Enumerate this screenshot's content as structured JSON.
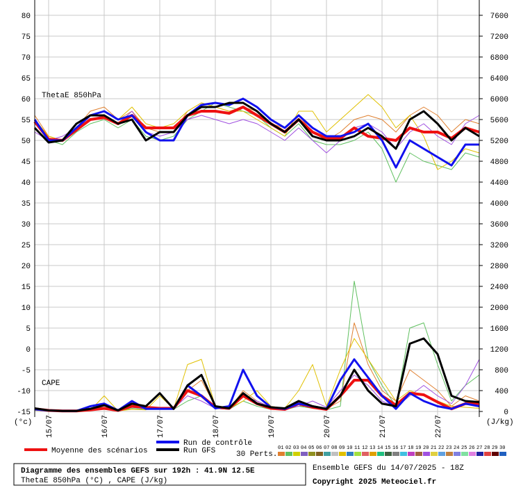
{
  "chart_data": {
    "type": "line",
    "title": "Diagramme des ensembles GEFS sur 192h : 41.9N 12.5E",
    "subtitle": "ThetaE 850hPa (°C) , CAPE (J/kg)",
    "run_info": "Ensemble GEFS du 14/07/2025 - 18Z",
    "copyright": "Copyright 2025 Meteociel.fr",
    "annotations": [
      "ThetaE 850hPa",
      "CAPE"
    ],
    "y_label": "(°c)",
    "y2_label": "(J/kg)",
    "perts_label": "30 Perts.",
    "grid": true,
    "categories": [
      null,
      "15/07",
      null,
      null,
      null,
      "16/07",
      null,
      null,
      null,
      "17/07",
      null,
      null,
      null,
      "18/07",
      null,
      null,
      null,
      "19/07",
      null,
      null,
      null,
      "20/07",
      null,
      null,
      null,
      "21/07",
      null,
      null,
      null,
      "22/07",
      null,
      null,
      null
    ],
    "ylim": [
      -15,
      80
    ],
    "yticks": [
      -15,
      -10,
      -5,
      0,
      5,
      10,
      15,
      20,
      25,
      30,
      35,
      40,
      45,
      50,
      55,
      60,
      65,
      70,
      75,
      80
    ],
    "y2lim": [
      0,
      7600
    ],
    "y2ticks": [
      0,
      400,
      800,
      1200,
      1600,
      2000,
      2400,
      2800,
      3200,
      3600,
      4000,
      4400,
      4800,
      5200,
      5600,
      6000,
      6400,
      6800,
      7200,
      7600
    ],
    "series": [
      {
        "name": "Moyenne des scénarios",
        "color": "#ee1111",
        "width": 4,
        "values": [
          54.5,
          50.3,
          50,
          52.5,
          55,
          55.5,
          54,
          56,
          53,
          53,
          53,
          56,
          57,
          57,
          56.5,
          58,
          56,
          54,
          52,
          55,
          52,
          50.5,
          50.5,
          53,
          51,
          50.5,
          50,
          53,
          52,
          52,
          50.5,
          53,
          52
        ]
      },
      {
        "name": "Run de contrôle",
        "color": "#1111ee",
        "width": 3,
        "values": [
          55,
          50,
          50,
          53,
          56,
          57,
          55,
          56,
          52,
          50,
          50,
          56,
          58.5,
          59,
          58.5,
          60,
          58,
          55,
          53,
          56,
          53,
          51,
          51,
          52,
          54,
          50,
          43.5,
          50,
          48,
          46,
          44,
          49,
          49
        ]
      },
      {
        "name": "Run GFS",
        "color": "#000000",
        "width": 3,
        "values": [
          53,
          49.5,
          50,
          54,
          56,
          56,
          54,
          55,
          50,
          52,
          52,
          56,
          58,
          58,
          59,
          59,
          57,
          54,
          52,
          55,
          51,
          50,
          50,
          51,
          53,
          51,
          48,
          55,
          57,
          54,
          50,
          53,
          51
        ]
      },
      {
        "name": "Moyenne des scénarios",
        "color": "#ee1111",
        "width": 4,
        "axis": "y2",
        "values": [
          50,
          20,
          10,
          10,
          30,
          60,
          20,
          100,
          80,
          60,
          60,
          400,
          300,
          80,
          60,
          300,
          150,
          60,
          40,
          150,
          80,
          40,
          300,
          600,
          600,
          300,
          120,
          350,
          320,
          180,
          50,
          150,
          150
        ]
      },
      {
        "name": "Run de contrôle",
        "color": "#1111ee",
        "width": 3,
        "axis": "y2",
        "values": [
          40,
          20,
          10,
          10,
          100,
          150,
          20,
          200,
          50,
          50,
          50,
          500,
          300,
          60,
          100,
          800,
          300,
          80,
          50,
          150,
          100,
          50,
          600,
          1000,
          650,
          300,
          50,
          350,
          200,
          100,
          50,
          150,
          100
        ]
      },
      {
        "name": "Run GFS",
        "color": "#000000",
        "width": 3,
        "axis": "y2",
        "values": [
          60,
          20,
          10,
          10,
          50,
          120,
          20,
          150,
          100,
          350,
          50,
          500,
          700,
          100,
          60,
          350,
          150,
          80,
          60,
          200,
          100,
          50,
          300,
          800,
          400,
          150,
          100,
          1300,
          1400,
          1100,
          300,
          200,
          180
        ]
      }
    ],
    "members": [
      {
        "name": "01",
        "color": "#e08030",
        "thetae": [
          56,
          51,
          50,
          53,
          57,
          58,
          55,
          57,
          53,
          52,
          52,
          57,
          59,
          58,
          57,
          58,
          57,
          54,
          53,
          56,
          52,
          50,
          52,
          55,
          56,
          55,
          52,
          56,
          58,
          56,
          52,
          55,
          54
        ],
        "cape": [
          30,
          10,
          10,
          10,
          60,
          80,
          20,
          100,
          60,
          50,
          50,
          400,
          600,
          100,
          50,
          400,
          200,
          80,
          50,
          100,
          100,
          50,
          200,
          1700,
          900,
          400,
          200,
          800,
          600,
          400,
          100,
          300,
          200
        ]
      },
      {
        "name": "02",
        "color": "#60c060",
        "thetae": [
          53,
          50,
          49,
          52,
          54,
          55,
          53,
          55,
          51,
          50,
          51,
          55,
          57,
          59,
          58,
          57,
          56,
          53,
          51,
          54,
          50,
          49,
          49,
          50,
          52,
          48,
          40,
          47,
          45,
          44,
          43,
          47,
          46
        ],
        "cape": [
          50,
          20,
          10,
          10,
          20,
          40,
          10,
          60,
          40,
          40,
          40,
          200,
          300,
          60,
          40,
          200,
          100,
          40,
          30,
          100,
          60,
          30,
          100,
          2500,
          1000,
          500,
          100,
          1600,
          1700,
          900,
          200,
          500,
          700
        ]
      },
      {
        "name": "03",
        "color": "#d0d000"
      },
      {
        "name": "04",
        "color": "#8060c0"
      },
      {
        "name": "05",
        "color": "#909020"
      },
      {
        "name": "06",
        "color": "#806020"
      },
      {
        "name": "07",
        "color": "#40a0a0"
      },
      {
        "name": "08",
        "color": "#c0c0c0"
      },
      {
        "name": "09",
        "color": "#e0c000",
        "thetae": [
          55,
          51,
          50,
          54,
          56,
          57,
          55,
          58,
          54,
          53,
          54,
          57,
          59,
          58,
          57,
          57,
          55,
          53,
          51,
          57,
          57,
          52,
          55,
          58,
          61,
          58,
          53,
          56,
          51,
          43,
          45,
          48,
          47
        ],
        "cape": [
          20,
          10,
          10,
          10,
          20,
          300,
          10,
          40,
          30,
          300,
          50,
          900,
          1000,
          100,
          60,
          200,
          400,
          100,
          60,
          400,
          900,
          100,
          800,
          1400,
          1000,
          600,
          200,
          400,
          300,
          200,
          100,
          80,
          60
        ]
      },
      {
        "name": "10",
        "color": "#3080c0"
      },
      {
        "name": "11",
        "color": "#a0e040"
      },
      {
        "name": "12",
        "color": "#e06060"
      },
      {
        "name": "13",
        "color": "#e0a000"
      },
      {
        "name": "14",
        "color": "#20c080"
      },
      {
        "name": "15",
        "color": "#406040"
      },
      {
        "name": "16",
        "color": "#808080"
      },
      {
        "name": "17",
        "color": "#40c0e0"
      },
      {
        "name": "18",
        "color": "#c040c0"
      },
      {
        "name": "19",
        "color": "#a06040"
      },
      {
        "name": "20",
        "color": "#a050e0",
        "thetae": [
          52,
          50,
          51,
          53,
          55,
          56,
          54,
          57,
          52,
          51,
          52,
          55,
          56,
          55,
          54,
          55,
          54,
          52,
          50,
          53,
          50,
          47,
          50,
          53,
          54,
          52,
          48,
          52,
          54,
          51,
          49,
          54,
          56
        ],
        "cape": [
          40,
          20,
          10,
          10,
          40,
          50,
          30,
          80,
          50,
          80,
          60,
          300,
          200,
          60,
          40,
          300,
          200,
          80,
          50,
          100,
          200,
          80,
          400,
          700,
          500,
          200,
          80,
          300,
          500,
          300,
          150,
          500,
          1000
        ]
      },
      {
        "name": "21",
        "color": "#e0d040"
      },
      {
        "name": "22",
        "color": "#60a0e0"
      },
      {
        "name": "23",
        "color": "#c08040"
      },
      {
        "name": "24",
        "color": "#8080e0"
      },
      {
        "name": "25",
        "color": "#80e0a0"
      },
      {
        "name": "26",
        "color": "#e080e0"
      },
      {
        "name": "27",
        "color": "#2020a0"
      },
      {
        "name": "28",
        "color": "#e04040"
      },
      {
        "name": "29",
        "color": "#600000"
      },
      {
        "name": "30",
        "color": "#2060c0"
      }
    ]
  }
}
